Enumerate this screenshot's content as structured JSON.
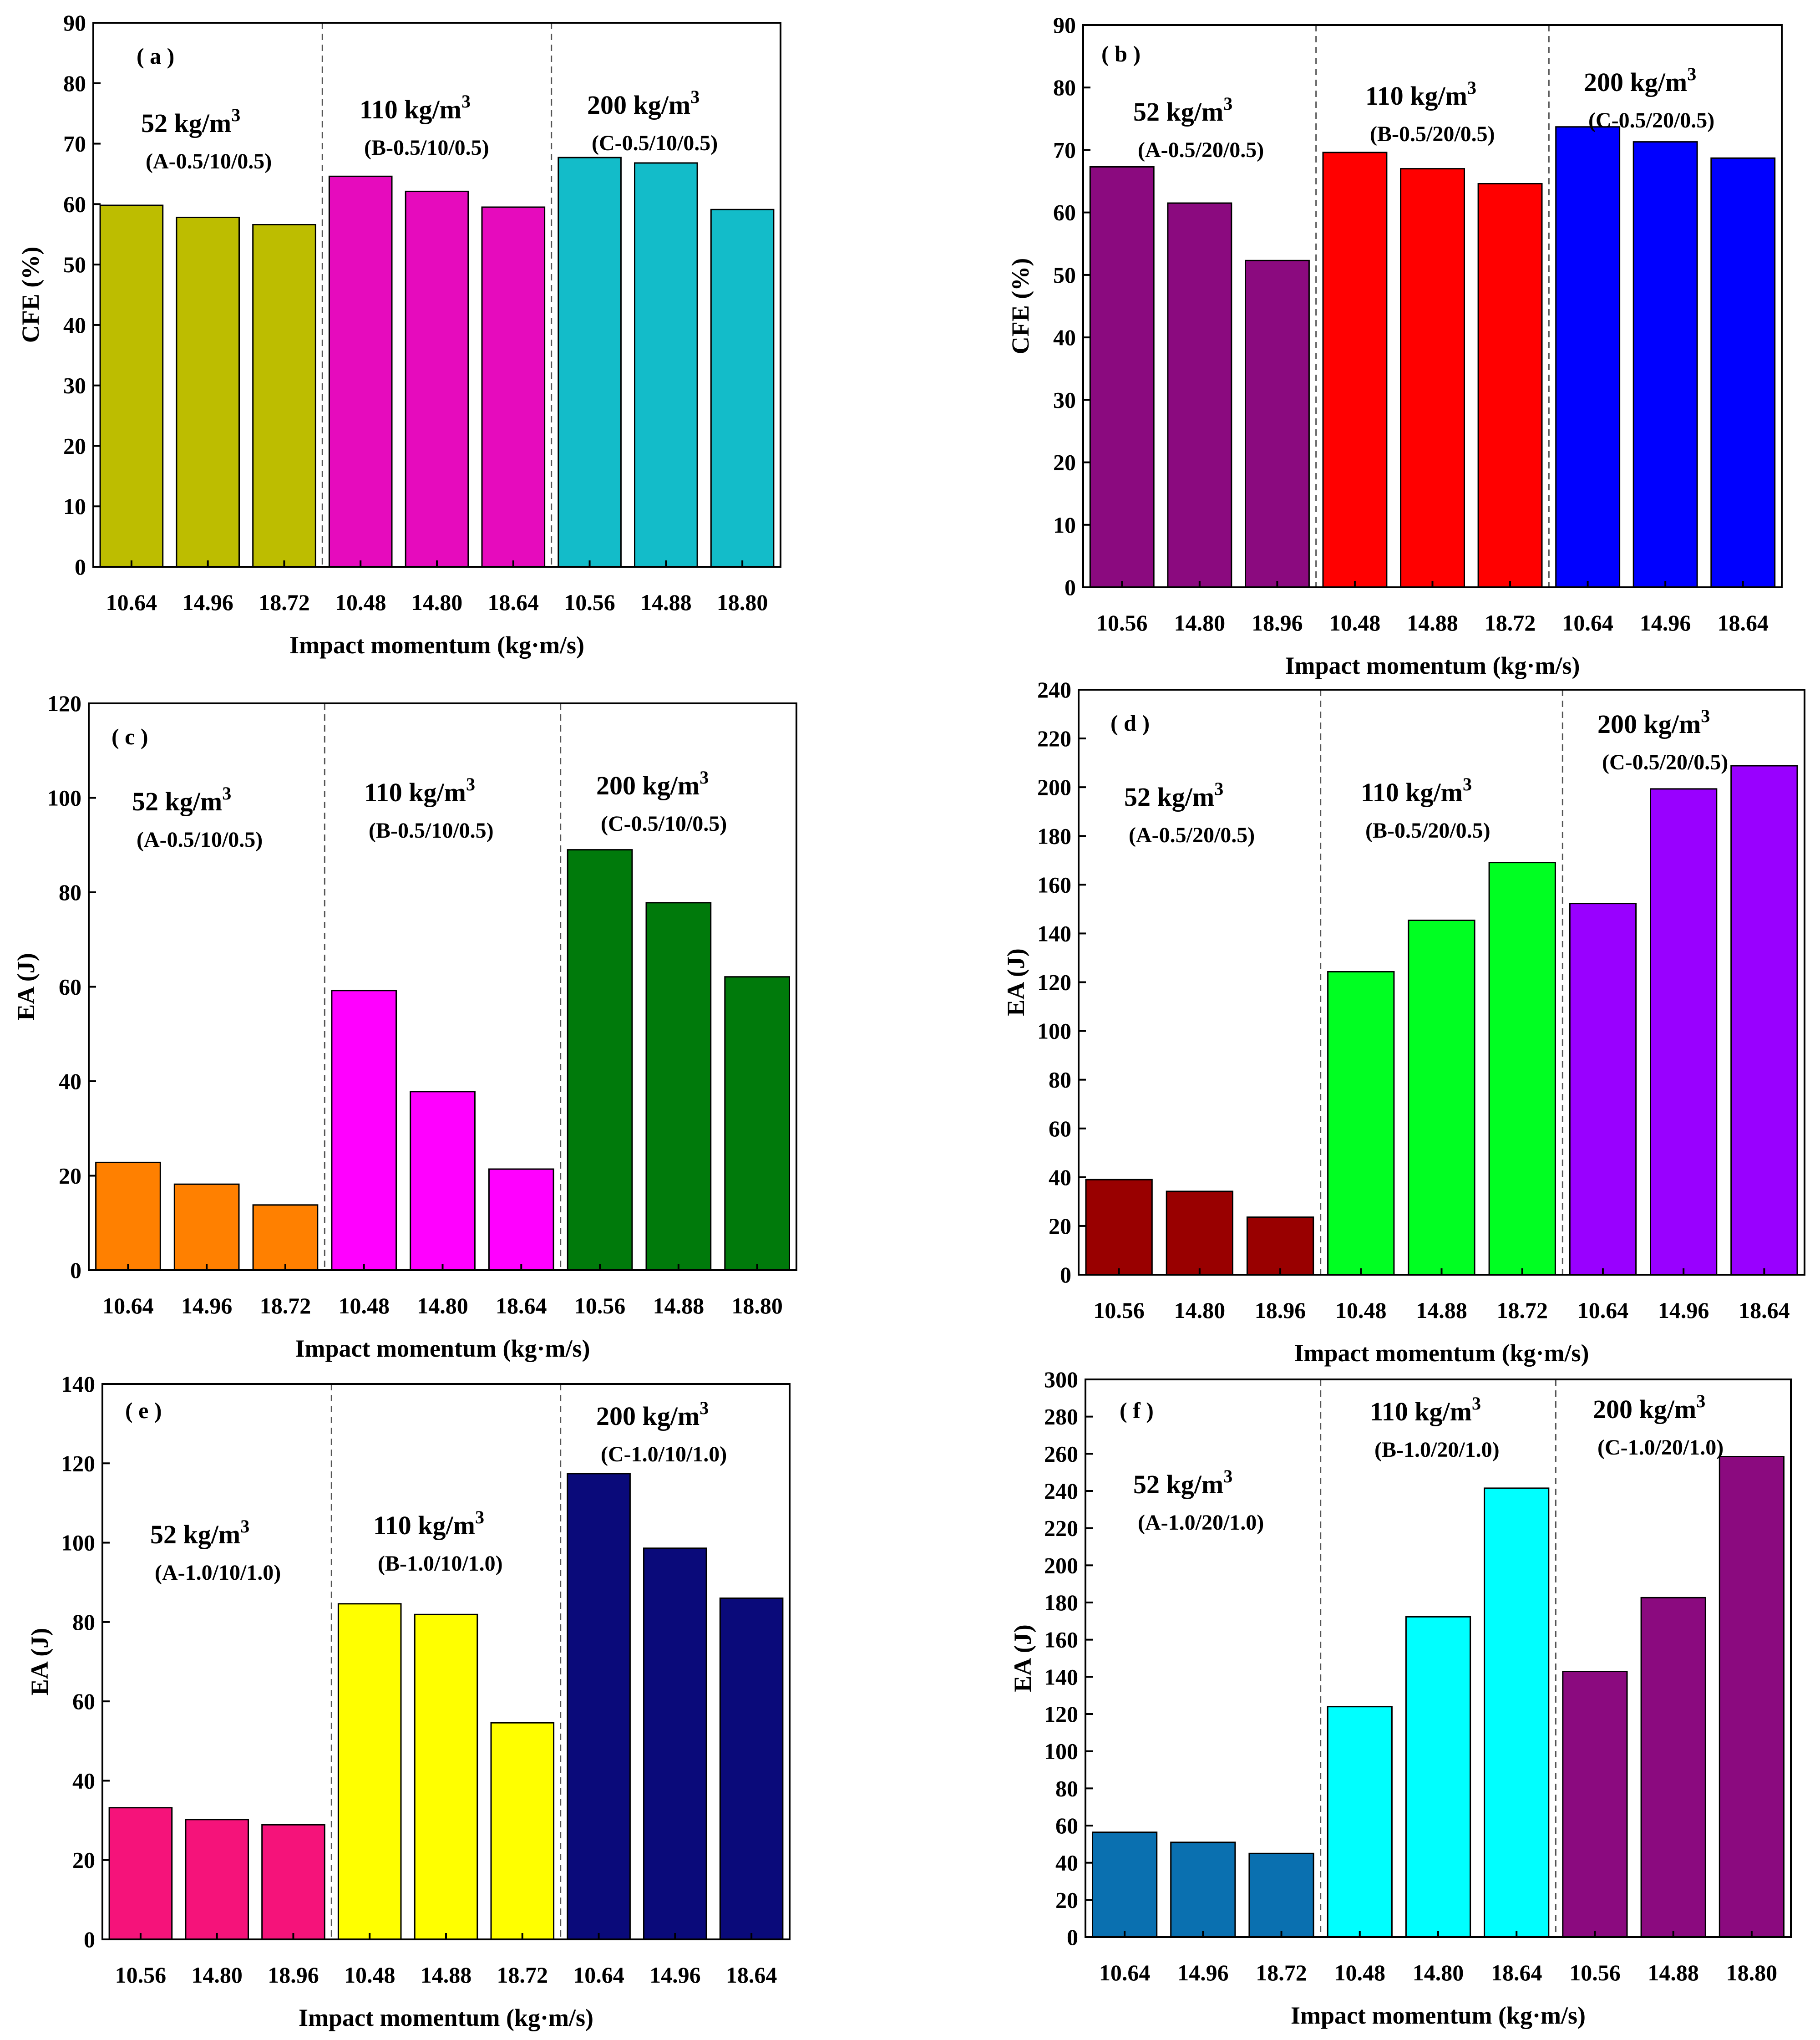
{
  "chart_data": [
    {
      "type": "bar",
      "panel": "( a )",
      "ylabel": "CFE (%)",
      "xlabel": "Impact momentum (kg·m/s)",
      "ylim": [
        0,
        90
      ],
      "yticks": [
        0,
        10,
        20,
        30,
        40,
        50,
        60,
        70,
        80,
        90
      ],
      "categories": [
        "10.64",
        "14.96",
        "18.72",
        "10.48",
        "14.80",
        "18.64",
        "10.56",
        "14.88",
        "18.80"
      ],
      "groups": [
        {
          "density": "52 kg/m",
          "sup": "3",
          "code": "(A-0.5/10/0.5)",
          "color": "#bdbd00",
          "values": [
            59.8,
            57.8,
            56.6
          ]
        },
        {
          "density": "110 kg/m",
          "sup": "3",
          "code": "(B-0.5/10/0.5)",
          "color": "#e60bbd",
          "values": [
            64.6,
            62.1,
            59.5
          ]
        },
        {
          "density": "200 kg/m",
          "sup": "3",
          "code": "(C-0.5/10/0.5)",
          "color": "#13bcc9",
          "values": [
            67.7,
            66.8,
            59.1
          ]
        }
      ]
    },
    {
      "type": "bar",
      "panel": "( b )",
      "ylabel": "CFE (%)",
      "xlabel": "Impact momentum (kg·m/s)",
      "ylim": [
        0,
        90
      ],
      "yticks": [
        0,
        10,
        20,
        30,
        40,
        50,
        60,
        70,
        80,
        90
      ],
      "categories": [
        "10.56",
        "14.80",
        "18.96",
        "10.48",
        "14.88",
        "18.72",
        "10.64",
        "14.96",
        "18.64"
      ],
      "groups": [
        {
          "density": "52 kg/m",
          "sup": "3",
          "code": "(A-0.5/20/0.5)",
          "color": "#8b0a7f",
          "values": [
            67.3,
            61.5,
            52.3
          ]
        },
        {
          "density": "110 kg/m",
          "sup": "3",
          "code": "(B-0.5/20/0.5)",
          "color": "#ff0000",
          "values": [
            69.6,
            67.0,
            64.6
          ]
        },
        {
          "density": "200 kg/m",
          "sup": "3",
          "code": "(C-0.5/20/0.5)",
          "color": "#0000ff",
          "values": [
            73.7,
            71.3,
            68.7
          ]
        }
      ]
    },
    {
      "type": "bar",
      "panel": "( c )",
      "ylabel": "EA (J)",
      "xlabel": "Impact momentum (kg·m/s)",
      "ylim": [
        0,
        120
      ],
      "yticks": [
        0,
        20,
        40,
        60,
        80,
        100,
        120
      ],
      "categories": [
        "10.64",
        "14.96",
        "18.72",
        "10.48",
        "14.80",
        "18.64",
        "10.56",
        "14.88",
        "18.80"
      ],
      "groups": [
        {
          "density": "52 kg/m",
          "sup": "3",
          "code": "(A-0.5/10/0.5)",
          "color": "#ff8000",
          "values": [
            22.8,
            18.2,
            13.8
          ]
        },
        {
          "density": "110 kg/m",
          "sup": "3",
          "code": "(B-0.5/10/0.5)",
          "color": "#ff00ff",
          "values": [
            59.2,
            37.8,
            21.4
          ]
        },
        {
          "density": "200 kg/m",
          "sup": "3",
          "code": "(C-0.5/10/0.5)",
          "color": "#007a0b",
          "values": [
            89.0,
            77.8,
            62.1
          ]
        }
      ]
    },
    {
      "type": "bar",
      "panel": "( d )",
      "ylabel": "EA (J)",
      "xlabel": "Impact momentum (kg·m/s)",
      "ylim": [
        0,
        240
      ],
      "yticks": [
        0,
        20,
        40,
        60,
        80,
        100,
        120,
        140,
        160,
        180,
        200,
        220,
        240
      ],
      "categories": [
        "10.56",
        "14.80",
        "18.96",
        "10.48",
        "14.88",
        "18.72",
        "10.64",
        "14.96",
        "18.64"
      ],
      "groups": [
        {
          "density": "52 kg/m",
          "sup": "3",
          "code": "(A-0.5/20/0.5)",
          "color": "#990000",
          "values": [
            39.0,
            34.2,
            23.6
          ]
        },
        {
          "density": "110 kg/m",
          "sup": "3",
          "code": "(B-0.5/20/0.5)",
          "color": "#00ff22",
          "values": [
            124.3,
            145.4,
            169.1
          ]
        },
        {
          "density": "200 kg/m",
          "sup": "3",
          "code": "(C-0.5/20/0.5)",
          "color": "#9900ff",
          "values": [
            152.3,
            199.3,
            208.8
          ]
        }
      ]
    },
    {
      "type": "bar",
      "panel": "( e )",
      "ylabel": "EA (J)",
      "xlabel": "Impact momentum (kg·m/s)",
      "ylim": [
        0,
        140
      ],
      "yticks": [
        0,
        20,
        40,
        60,
        80,
        100,
        120,
        140
      ],
      "categories": [
        "10.56",
        "14.80",
        "18.96",
        "10.48",
        "14.88",
        "18.72",
        "10.64",
        "14.96",
        "18.64"
      ],
      "groups": [
        {
          "density": "52 kg/m",
          "sup": "3",
          "code": "(A-1.0/10/1.0)",
          "color": "#f5137a",
          "values": [
            33.2,
            30.2,
            28.9
          ]
        },
        {
          "density": "110 kg/m",
          "sup": "3",
          "code": "(B-1.0/10/1.0)",
          "color": "#ffff00",
          "values": [
            84.6,
            81.9,
            54.6
          ]
        },
        {
          "density": "200 kg/m",
          "sup": "3",
          "code": "(C-1.0/10/1.0)",
          "color": "#0a0a7a",
          "values": [
            117.4,
            98.6,
            86.0
          ]
        }
      ]
    },
    {
      "type": "bar",
      "panel": "( f )",
      "ylabel": "EA (J)",
      "xlabel": "Impact momentum (kg·m/s)",
      "ylim": [
        0,
        300
      ],
      "yticks": [
        0,
        20,
        40,
        60,
        80,
        100,
        120,
        140,
        160,
        180,
        200,
        220,
        240,
        260,
        280,
        300
      ],
      "categories": [
        "10.64",
        "14.96",
        "18.72",
        "10.48",
        "14.80",
        "18.64",
        "10.56",
        "14.88",
        "18.80"
      ],
      "groups": [
        {
          "density": "52 kg/m",
          "sup": "3",
          "code": "(A-1.0/20/1.0)",
          "color": "#0a70b0",
          "values": [
            56.4,
            51.0,
            45.0
          ]
        },
        {
          "density": "110 kg/m",
          "sup": "3",
          "code": "(B-1.0/20/1.0)",
          "color": "#00ffff",
          "values": [
            124.0,
            172.3,
            241.5
          ]
        },
        {
          "density": "200 kg/m",
          "sup": "3",
          "code": "(C-1.0/20/1.0)",
          "color": "#8b0a7f",
          "values": [
            142.9,
            182.6,
            258.5
          ]
        }
      ]
    }
  ]
}
